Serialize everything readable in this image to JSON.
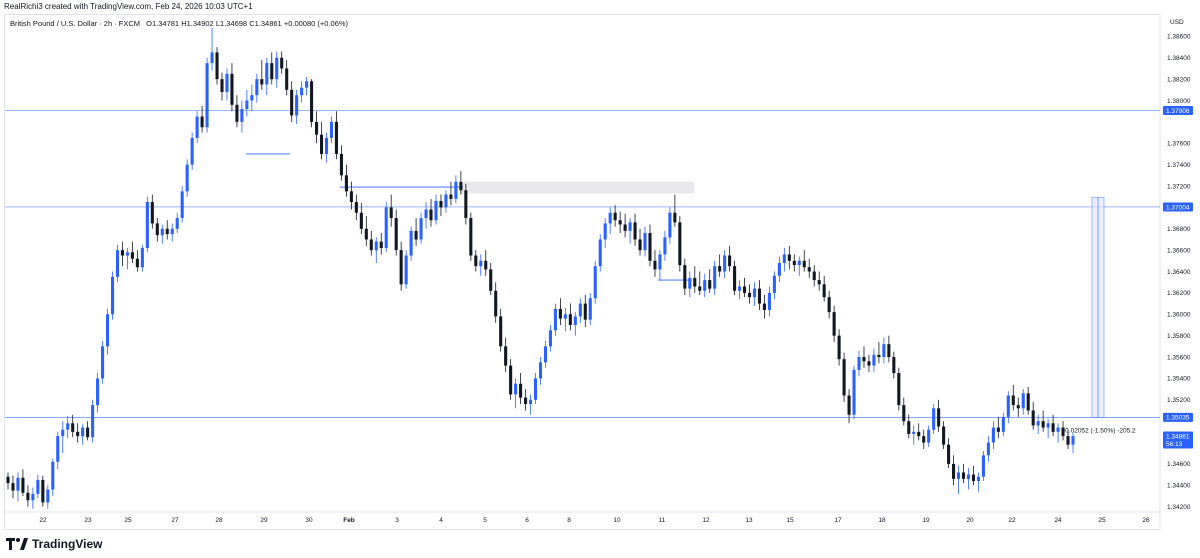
{
  "header": {
    "created_by": "RealRichi3 created with TradingView.com, Feb 24, 2026 10:03 UTC+1"
  },
  "legend": {
    "symbol": "British Pound / U.S. Dollar · 2h · FXCM",
    "open": "O1.34781",
    "high": "H1.34902",
    "low": "L1.34698",
    "close": "C1.34861",
    "change": "+0.00080 (+0.06%)"
  },
  "footer": {
    "brand": "TradingView"
  },
  "colors": {
    "up": "#2962ff",
    "down": "#131722",
    "line": "#2962ff",
    "zone": "#e8e8ea"
  },
  "chart_data": {
    "type": "candlestick",
    "currency": "USD",
    "ylim": [
      1.3415,
      1.388
    ],
    "y_ticks": [
      "1.38600",
      "1.38400",
      "1.38200",
      "1.38000",
      "1.37600",
      "1.37400",
      "1.37200",
      "1.36800",
      "1.36600",
      "1.36400",
      "1.36200",
      "1.36000",
      "1.35800",
      "1.35600",
      "1.35400",
      "1.35200",
      "1.34600",
      "1.34400",
      "1.34200"
    ],
    "x_ticks": [
      "22",
      "23",
      "25",
      "27",
      "28",
      "29",
      "30",
      "Feb",
      "3",
      "4",
      "5",
      "6",
      "8",
      "10",
      "11",
      "12",
      "13",
      "15",
      "17",
      "18",
      "19",
      "20",
      "22",
      "24",
      "25",
      "26"
    ],
    "price_tags": [
      {
        "value": "1.37906",
        "price": 1.37906
      },
      {
        "value": "1.37004",
        "price": 1.37004
      },
      {
        "value": "1.35035",
        "price": 1.35035
      },
      {
        "value": "1.34861",
        "price": 1.34861,
        "sub": "56:13"
      }
    ],
    "measure_label": "-0.02052 (-1.50%) -205.2",
    "candles": [
      [
        1.3448,
        1.3452,
        1.3436,
        1.3442
      ],
      [
        1.3442,
        1.3449,
        1.3428,
        1.3435
      ],
      [
        1.3435,
        1.3452,
        1.3425,
        1.3447
      ],
      [
        1.3447,
        1.3455,
        1.343,
        1.3433
      ],
      [
        1.3433,
        1.344,
        1.342,
        1.3426
      ],
      [
        1.3426,
        1.3438,
        1.3418,
        1.3432
      ],
      [
        1.3432,
        1.345,
        1.3428,
        1.3445
      ],
      [
        1.3445,
        1.3449,
        1.342,
        1.3424
      ],
      [
        1.3424,
        1.344,
        1.3418,
        1.3436
      ],
      [
        1.3436,
        1.3465,
        1.343,
        1.3462
      ],
      [
        1.3462,
        1.349,
        1.3455,
        1.3486
      ],
      [
        1.3486,
        1.35,
        1.347,
        1.3492
      ],
      [
        1.3492,
        1.3505,
        1.3484,
        1.3498
      ],
      [
        1.3498,
        1.3506,
        1.3485,
        1.349
      ],
      [
        1.349,
        1.3498,
        1.348,
        1.3486
      ],
      [
        1.3486,
        1.3497,
        1.3478,
        1.3494
      ],
      [
        1.3494,
        1.35,
        1.3482,
        1.3485
      ],
      [
        1.3485,
        1.352,
        1.348,
        1.3515
      ],
      [
        1.3515,
        1.3545,
        1.3508,
        1.354
      ],
      [
        1.354,
        1.3575,
        1.3535,
        1.357
      ],
      [
        1.357,
        1.3605,
        1.3562,
        1.36
      ],
      [
        1.36,
        1.364,
        1.3595,
        1.3635
      ],
      [
        1.3635,
        1.3665,
        1.363,
        1.366
      ],
      [
        1.366,
        1.3668,
        1.3645,
        1.3655
      ],
      [
        1.3655,
        1.3662,
        1.3642,
        1.3658
      ],
      [
        1.3658,
        1.3668,
        1.3648,
        1.3652
      ],
      [
        1.3652,
        1.366,
        1.364,
        1.3644
      ],
      [
        1.3644,
        1.3665,
        1.364,
        1.3662
      ],
      [
        1.3662,
        1.371,
        1.3658,
        1.3705
      ],
      [
        1.3705,
        1.3712,
        1.368,
        1.3685
      ],
      [
        1.3685,
        1.369,
        1.3668,
        1.3674
      ],
      [
        1.3674,
        1.3684,
        1.3666,
        1.368
      ],
      [
        1.368,
        1.3688,
        1.367,
        1.3675
      ],
      [
        1.3675,
        1.3685,
        1.3668,
        1.368
      ],
      [
        1.368,
        1.3695,
        1.3676,
        1.369
      ],
      [
        1.369,
        1.372,
        1.3686,
        1.3715
      ],
      [
        1.3715,
        1.3745,
        1.371,
        1.374
      ],
      [
        1.374,
        1.377,
        1.3735,
        1.3765
      ],
      [
        1.3765,
        1.379,
        1.376,
        1.3785
      ],
      [
        1.3785,
        1.3795,
        1.377,
        1.3775
      ],
      [
        1.3775,
        1.384,
        1.377,
        1.3835
      ],
      [
        1.3835,
        1.3868,
        1.3828,
        1.3845
      ],
      [
        1.3845,
        1.385,
        1.3815,
        1.382
      ],
      [
        1.382,
        1.3826,
        1.38,
        1.3808
      ],
      [
        1.3808,
        1.383,
        1.38,
        1.3825
      ],
      [
        1.3825,
        1.3835,
        1.379,
        1.3796
      ],
      [
        1.3796,
        1.3805,
        1.3775,
        1.378
      ],
      [
        1.378,
        1.38,
        1.377,
        1.3792
      ],
      [
        1.3792,
        1.381,
        1.3785,
        1.38
      ],
      [
        1.38,
        1.3815,
        1.379,
        1.3805
      ],
      [
        1.3805,
        1.3825,
        1.3798,
        1.382
      ],
      [
        1.382,
        1.3838,
        1.381,
        1.3815
      ],
      [
        1.3815,
        1.384,
        1.3805,
        1.3835
      ],
      [
        1.3835,
        1.3845,
        1.3815,
        1.382
      ],
      [
        1.382,
        1.3846,
        1.3812,
        1.384
      ],
      [
        1.384,
        1.3846,
        1.3825,
        1.383
      ],
      [
        1.383,
        1.3838,
        1.3805,
        1.381
      ],
      [
        1.381,
        1.3818,
        1.378,
        1.3786
      ],
      [
        1.3786,
        1.381,
        1.3778,
        1.3805
      ],
      [
        1.3805,
        1.3818,
        1.3798,
        1.3812
      ],
      [
        1.3812,
        1.3822,
        1.3805,
        1.3818
      ],
      [
        1.3818,
        1.382,
        1.3775,
        1.378
      ],
      [
        1.378,
        1.379,
        1.376,
        1.3768
      ],
      [
        1.3768,
        1.378,
        1.3745,
        1.375
      ],
      [
        1.375,
        1.377,
        1.3742,
        1.3765
      ],
      [
        1.3765,
        1.3785,
        1.376,
        1.378
      ],
      [
        1.378,
        1.379,
        1.3745,
        1.375
      ],
      [
        1.375,
        1.3758,
        1.3725,
        1.373
      ],
      [
        1.373,
        1.374,
        1.371,
        1.3715
      ],
      [
        1.3715,
        1.3724,
        1.3698,
        1.3705
      ],
      [
        1.3705,
        1.3712,
        1.3688,
        1.3695
      ],
      [
        1.3695,
        1.3704,
        1.3675,
        1.368
      ],
      [
        1.368,
        1.3692,
        1.3664,
        1.367
      ],
      [
        1.367,
        1.3678,
        1.3655,
        1.366
      ],
      [
        1.366,
        1.3672,
        1.3648,
        1.3668
      ],
      [
        1.3668,
        1.3676,
        1.3656,
        1.3662
      ],
      [
        1.3662,
        1.3705,
        1.3658,
        1.37
      ],
      [
        1.37,
        1.3712,
        1.3682,
        1.369
      ],
      [
        1.369,
        1.3698,
        1.3655,
        1.366
      ],
      [
        1.366,
        1.3668,
        1.3622,
        1.3628
      ],
      [
        1.3628,
        1.366,
        1.3624,
        1.3655
      ],
      [
        1.3655,
        1.3682,
        1.365,
        1.3678
      ],
      [
        1.3678,
        1.369,
        1.3664,
        1.367
      ],
      [
        1.367,
        1.3695,
        1.3666,
        1.369
      ],
      [
        1.369,
        1.3705,
        1.368,
        1.3698
      ],
      [
        1.3698,
        1.3708,
        1.3682,
        1.3688
      ],
      [
        1.3688,
        1.3712,
        1.3684,
        1.3706
      ],
      [
        1.3706,
        1.3712,
        1.3692,
        1.37
      ],
      [
        1.37,
        1.3716,
        1.3695,
        1.3712
      ],
      [
        1.3712,
        1.3724,
        1.3702,
        1.3708
      ],
      [
        1.3708,
        1.373,
        1.3704,
        1.3724
      ],
      [
        1.3724,
        1.3734,
        1.3712,
        1.3716
      ],
      [
        1.3716,
        1.3722,
        1.3684,
        1.369
      ],
      [
        1.369,
        1.3695,
        1.365,
        1.3655
      ],
      [
        1.3655,
        1.366,
        1.364,
        1.3645
      ],
      [
        1.3645,
        1.3656,
        1.3636,
        1.365
      ],
      [
        1.365,
        1.366,
        1.3636,
        1.3642
      ],
      [
        1.3642,
        1.3648,
        1.3618,
        1.3622
      ],
      [
        1.3622,
        1.363,
        1.3592,
        1.3598
      ],
      [
        1.3598,
        1.3605,
        1.3565,
        1.357
      ],
      [
        1.357,
        1.3578,
        1.3546,
        1.3552
      ],
      [
        1.3552,
        1.3558,
        1.352,
        1.3525
      ],
      [
        1.3525,
        1.354,
        1.3512,
        1.3535
      ],
      [
        1.3535,
        1.3545,
        1.3516,
        1.3522
      ],
      [
        1.3522,
        1.353,
        1.351,
        1.3516
      ],
      [
        1.3516,
        1.3525,
        1.3506,
        1.352
      ],
      [
        1.352,
        1.3545,
        1.3516,
        1.354
      ],
      [
        1.354,
        1.356,
        1.3534,
        1.3555
      ],
      [
        1.3555,
        1.3575,
        1.355,
        1.357
      ],
      [
        1.357,
        1.359,
        1.3565,
        1.3585
      ],
      [
        1.3585,
        1.361,
        1.358,
        1.3605
      ],
      [
        1.3605,
        1.3615,
        1.359,
        1.3596
      ],
      [
        1.3596,
        1.3606,
        1.3584,
        1.36
      ],
      [
        1.36,
        1.361,
        1.3585,
        1.359
      ],
      [
        1.359,
        1.3602,
        1.358,
        1.3598
      ],
      [
        1.3598,
        1.3615,
        1.3592,
        1.361
      ],
      [
        1.361,
        1.3618,
        1.3588,
        1.3595
      ],
      [
        1.3595,
        1.362,
        1.359,
        1.3615
      ],
      [
        1.3615,
        1.365,
        1.361,
        1.3645
      ],
      [
        1.3645,
        1.3675,
        1.364,
        1.367
      ],
      [
        1.367,
        1.369,
        1.3662,
        1.3685
      ],
      [
        1.3685,
        1.37,
        1.3675,
        1.3695
      ],
      [
        1.3695,
        1.3702,
        1.3682,
        1.3688
      ],
      [
        1.3688,
        1.3696,
        1.3676,
        1.3684
      ],
      [
        1.3684,
        1.3694,
        1.3672,
        1.3678
      ],
      [
        1.3678,
        1.369,
        1.3666,
        1.3686
      ],
      [
        1.3686,
        1.3694,
        1.3664,
        1.367
      ],
      [
        1.367,
        1.368,
        1.3655,
        1.366
      ],
      [
        1.366,
        1.3682,
        1.3654,
        1.3676
      ],
      [
        1.3676,
        1.3684,
        1.3645,
        1.365
      ],
      [
        1.365,
        1.366,
        1.3635,
        1.3642
      ],
      [
        1.3642,
        1.366,
        1.3632,
        1.3656
      ],
      [
        1.3656,
        1.3678,
        1.365,
        1.3672
      ],
      [
        1.3672,
        1.37,
        1.3666,
        1.3695
      ],
      [
        1.3695,
        1.3712,
        1.3682,
        1.3686
      ],
      [
        1.3686,
        1.3692,
        1.364,
        1.3646
      ],
      [
        1.3646,
        1.3652,
        1.3618,
        1.3624
      ],
      [
        1.3624,
        1.364,
        1.3616,
        1.3634
      ],
      [
        1.3634,
        1.3645,
        1.362,
        1.3626
      ],
      [
        1.3626,
        1.364,
        1.3618,
        1.3622
      ],
      [
        1.3622,
        1.3638,
        1.3616,
        1.3632
      ],
      [
        1.3632,
        1.3642,
        1.362,
        1.3624
      ],
      [
        1.3624,
        1.365,
        1.3618,
        1.3645
      ],
      [
        1.3645,
        1.3656,
        1.3635,
        1.364
      ],
      [
        1.364,
        1.366,
        1.3634,
        1.3655
      ],
      [
        1.3655,
        1.3664,
        1.364,
        1.3645
      ],
      [
        1.3645,
        1.365,
        1.3618,
        1.3622
      ],
      [
        1.3622,
        1.3632,
        1.3614,
        1.3626
      ],
      [
        1.3626,
        1.3634,
        1.3616,
        1.362
      ],
      [
        1.362,
        1.3628,
        1.361,
        1.3616
      ],
      [
        1.3616,
        1.363,
        1.3608,
        1.3624
      ],
      [
        1.3624,
        1.3632,
        1.3604,
        1.361
      ],
      [
        1.361,
        1.3618,
        1.3596,
        1.3604
      ],
      [
        1.3604,
        1.3626,
        1.3598,
        1.362
      ],
      [
        1.362,
        1.364,
        1.3614,
        1.3636
      ],
      [
        1.3636,
        1.3654,
        1.363,
        1.3648
      ],
      [
        1.3648,
        1.3662,
        1.364,
        1.3656
      ],
      [
        1.3656,
        1.3664,
        1.3642,
        1.365
      ],
      [
        1.365,
        1.3656,
        1.364,
        1.3646
      ],
      [
        1.3646,
        1.3654,
        1.3636,
        1.365
      ],
      [
        1.365,
        1.366,
        1.364,
        1.3644
      ],
      [
        1.3644,
        1.3652,
        1.3634,
        1.364
      ],
      [
        1.364,
        1.3646,
        1.3626,
        1.3632
      ],
      [
        1.3632,
        1.364,
        1.3622,
        1.3628
      ],
      [
        1.3628,
        1.3636,
        1.3612,
        1.3616
      ],
      [
        1.3616,
        1.3622,
        1.3596,
        1.3602
      ],
      [
        1.3602,
        1.3608,
        1.3574,
        1.358
      ],
      [
        1.358,
        1.3586,
        1.3552,
        1.3558
      ],
      [
        1.3558,
        1.3564,
        1.3518,
        1.3524
      ],
      [
        1.3524,
        1.353,
        1.3498,
        1.3506
      ],
      [
        1.3506,
        1.3552,
        1.3502,
        1.3548
      ],
      [
        1.3548,
        1.3566,
        1.3542,
        1.356
      ],
      [
        1.356,
        1.357,
        1.355,
        1.3556
      ],
      [
        1.3556,
        1.3562,
        1.3546,
        1.3552
      ],
      [
        1.3552,
        1.3568,
        1.3546,
        1.3562
      ],
      [
        1.3562,
        1.3574,
        1.3554,
        1.356
      ],
      [
        1.356,
        1.3578,
        1.3554,
        1.3572
      ],
      [
        1.3572,
        1.358,
        1.3555,
        1.356
      ],
      [
        1.356,
        1.3565,
        1.354,
        1.3545
      ],
      [
        1.3545,
        1.355,
        1.351,
        1.3515
      ],
      [
        1.3515,
        1.3522,
        1.3496,
        1.35
      ],
      [
        1.35,
        1.3506,
        1.3484,
        1.3488
      ],
      [
        1.3488,
        1.3496,
        1.3478,
        1.349
      ],
      [
        1.349,
        1.3498,
        1.3482,
        1.3486
      ],
      [
        1.3486,
        1.3492,
        1.3474,
        1.348
      ],
      [
        1.348,
        1.3496,
        1.3476,
        1.3492
      ],
      [
        1.3492,
        1.3516,
        1.3488,
        1.3512
      ],
      [
        1.3512,
        1.352,
        1.349,
        1.3495
      ],
      [
        1.3495,
        1.35,
        1.3474,
        1.3478
      ],
      [
        1.3478,
        1.3484,
        1.3456,
        1.346
      ],
      [
        1.346,
        1.3468,
        1.344,
        1.3446
      ],
      [
        1.3446,
        1.3458,
        1.3432,
        1.3452
      ],
      [
        1.3452,
        1.346,
        1.3442,
        1.3446
      ],
      [
        1.3446,
        1.3456,
        1.3436,
        1.345
      ],
      [
        1.345,
        1.3458,
        1.344,
        1.3444
      ],
      [
        1.3444,
        1.3452,
        1.3434,
        1.3448
      ],
      [
        1.3448,
        1.3472,
        1.3444,
        1.3468
      ],
      [
        1.3468,
        1.3486,
        1.3462,
        1.348
      ],
      [
        1.348,
        1.35,
        1.3474,
        1.3494
      ],
      [
        1.3494,
        1.3504,
        1.3484,
        1.349
      ],
      [
        1.349,
        1.3508,
        1.3486,
        1.3504
      ],
      [
        1.3504,
        1.3528,
        1.3498,
        1.3524
      ],
      [
        1.3524,
        1.3534,
        1.351,
        1.3515
      ],
      [
        1.3515,
        1.3522,
        1.3504,
        1.3512
      ],
      [
        1.3512,
        1.353,
        1.3506,
        1.3526
      ],
      [
        1.3526,
        1.3532,
        1.3506,
        1.351
      ],
      [
        1.351,
        1.3518,
        1.3492,
        1.3496
      ],
      [
        1.3496,
        1.3506,
        1.3488,
        1.35
      ],
      [
        1.35,
        1.351,
        1.349,
        1.3494
      ],
      [
        1.3494,
        1.3502,
        1.3484,
        1.3498
      ],
      [
        1.3498,
        1.3506,
        1.3486,
        1.349
      ],
      [
        1.349,
        1.3498,
        1.348,
        1.3494
      ],
      [
        1.3494,
        1.35,
        1.3482,
        1.3486
      ],
      [
        1.3486,
        1.3492,
        1.3474,
        1.3478
      ],
      [
        1.3478,
        1.349,
        1.347,
        1.3486
      ]
    ]
  }
}
